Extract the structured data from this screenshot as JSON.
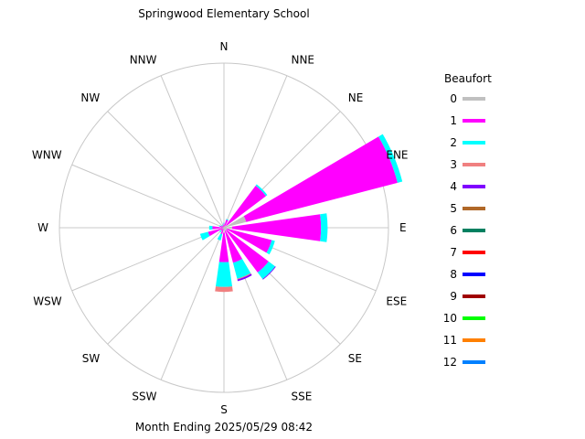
{
  "chart_data": {
    "type": "wind-rose",
    "title": "Springwood Elementary School",
    "footer": "Month Ending 2025/05/29 08:42",
    "directions": [
      "N",
      "NNE",
      "NE",
      "ENE",
      "E",
      "ESE",
      "SE",
      "SSE",
      "S",
      "SSW",
      "SW",
      "WSW",
      "W",
      "WNW",
      "NW",
      "NNW"
    ],
    "legend": {
      "title": "Beaufort",
      "placement": "right",
      "items": [
        {
          "label": "0",
          "color": "#c0c0c0"
        },
        {
          "label": "1",
          "color": "#ff00ff"
        },
        {
          "label": "2",
          "color": "#00ffff"
        },
        {
          "label": "3",
          "color": "#f08080"
        },
        {
          "label": "4",
          "color": "#8000ff"
        },
        {
          "label": "5",
          "color": "#b06828"
        },
        {
          "label": "6",
          "color": "#008060"
        },
        {
          "label": "7",
          "color": "#ff0000"
        },
        {
          "label": "8",
          "color": "#0000ff"
        },
        {
          "label": "9",
          "color": "#a00000"
        },
        {
          "label": "10",
          "color": "#00ff00"
        },
        {
          "label": "11",
          "color": "#ff8000"
        },
        {
          "label": "12",
          "color": "#0080ff"
        }
      ]
    },
    "series": [
      {
        "name": "0",
        "values": [
          0.005,
          0.01,
          0.02,
          0.14,
          0.05,
          0.02,
          0.02,
          0.02,
          0.03,
          0.01,
          0.005,
          0.01,
          0.01,
          0.005,
          0.005,
          0.005
        ]
      },
      {
        "name": "1",
        "values": [
          0.02,
          0.04,
          0.3,
          0.95,
          0.54,
          0.28,
          0.32,
          0.2,
          0.18,
          0.03,
          0.02,
          0.09,
          0.06,
          0.02,
          0.01,
          0.01
        ]
      },
      {
        "name": "2",
        "values": [
          0.005,
          0.005,
          0.01,
          0.03,
          0.04,
          0.02,
          0.05,
          0.1,
          0.15,
          0.04,
          0.01,
          0.05,
          0.02,
          0.005,
          0.005,
          0.005
        ]
      },
      {
        "name": "3",
        "values": [
          0,
          0,
          0,
          0,
          0,
          0,
          0,
          0.005,
          0.03,
          0,
          0,
          0,
          0,
          0,
          0,
          0
        ]
      },
      {
        "name": "4",
        "values": [
          0,
          0,
          0,
          0,
          0,
          0,
          0.005,
          0.01,
          0,
          0,
          0,
          0,
          0,
          0,
          0,
          0
        ]
      }
    ]
  }
}
